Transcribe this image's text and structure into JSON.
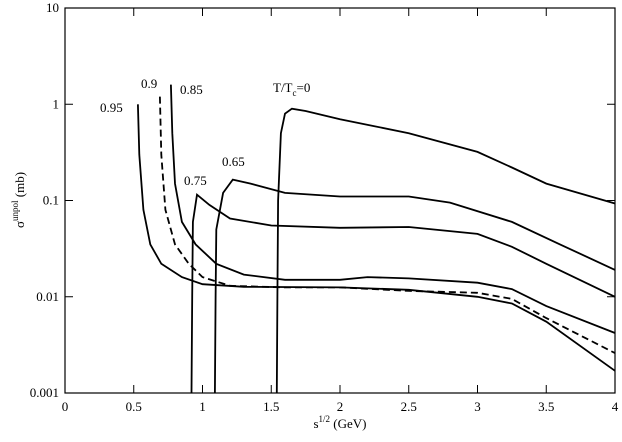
{
  "chart_data": {
    "type": "line",
    "xlabel": [
      "s",
      "1/2",
      " (GeV)"
    ],
    "ylabel": [
      "σ",
      "unpol",
      " (mb)"
    ],
    "xlim": [
      0,
      4
    ],
    "xticks": [
      0,
      0.5,
      1,
      1.5,
      2,
      2.5,
      3,
      3.5,
      4
    ],
    "ylim": [
      0.001,
      10
    ],
    "yticks": [
      0.001,
      0.01,
      0.1,
      1,
      10
    ],
    "log_y": true,
    "series": [
      {
        "name": [
          "T/T",
          "c",
          "=0"
        ],
        "color": "#000000",
        "dash": false,
        "x": [
          1.54,
          1.545,
          1.55,
          1.57,
          1.6,
          1.65,
          1.75,
          2,
          2.5,
          3,
          3.25,
          3.5,
          4
        ],
        "values": [
          0.001,
          0.01,
          0.1,
          0.5,
          0.8,
          0.9,
          0.85,
          0.7,
          0.5,
          0.32,
          0.22,
          0.15,
          0.093
        ]
      },
      {
        "name": "0.65",
        "color": "#000000",
        "dash": false,
        "x": [
          1.09,
          1.095,
          1.1,
          1.15,
          1.22,
          1.35,
          1.6,
          2,
          2.5,
          2.8,
          3.25,
          3.6,
          4
        ],
        "values": [
          0.001,
          0.01,
          0.05,
          0.12,
          0.165,
          0.15,
          0.12,
          0.11,
          0.11,
          0.095,
          0.06,
          0.035,
          0.019
        ]
      },
      {
        "name": "0.75",
        "color": "#000000",
        "dash": false,
        "x": [
          0.92,
          0.925,
          0.93,
          0.96,
          1.05,
          1.2,
          1.5,
          2,
          2.5,
          3,
          3.25,
          3.5,
          4
        ],
        "values": [
          0.001,
          0.01,
          0.06,
          0.115,
          0.09,
          0.065,
          0.055,
          0.052,
          0.053,
          0.045,
          0.033,
          0.022,
          0.01
        ]
      },
      {
        "name": "0.85",
        "color": "#000000",
        "dash": false,
        "x": [
          0.77,
          0.78,
          0.8,
          0.85,
          0.95,
          1.1,
          1.3,
          1.6,
          2,
          2.2,
          2.5,
          3,
          3.25,
          3.5,
          4
        ],
        "values": [
          1.6,
          0.5,
          0.15,
          0.06,
          0.035,
          0.022,
          0.017,
          0.015,
          0.015,
          0.016,
          0.0155,
          0.014,
          0.012,
          0.008,
          0.0042
        ]
      },
      {
        "name": "0.9",
        "color": "#000000",
        "dash": true,
        "x": [
          0.69,
          0.7,
          0.73,
          0.8,
          0.9,
          1.0,
          1.2,
          1.6,
          2,
          2.5,
          3,
          3.25,
          3.5,
          4
        ],
        "values": [
          1.2,
          0.3,
          0.08,
          0.035,
          0.022,
          0.016,
          0.013,
          0.0125,
          0.0125,
          0.0115,
          0.011,
          0.0095,
          0.006,
          0.0026
        ]
      },
      {
        "name": "0.95",
        "color": "#000000",
        "dash": false,
        "x": [
          0.53,
          0.54,
          0.57,
          0.62,
          0.7,
          0.85,
          1.0,
          1.3,
          2,
          2.5,
          3,
          3.25,
          3.5,
          4
        ],
        "values": [
          1.0,
          0.3,
          0.08,
          0.035,
          0.022,
          0.016,
          0.0135,
          0.0127,
          0.0125,
          0.0118,
          0.01,
          0.0085,
          0.0055,
          0.0017
        ]
      }
    ]
  }
}
